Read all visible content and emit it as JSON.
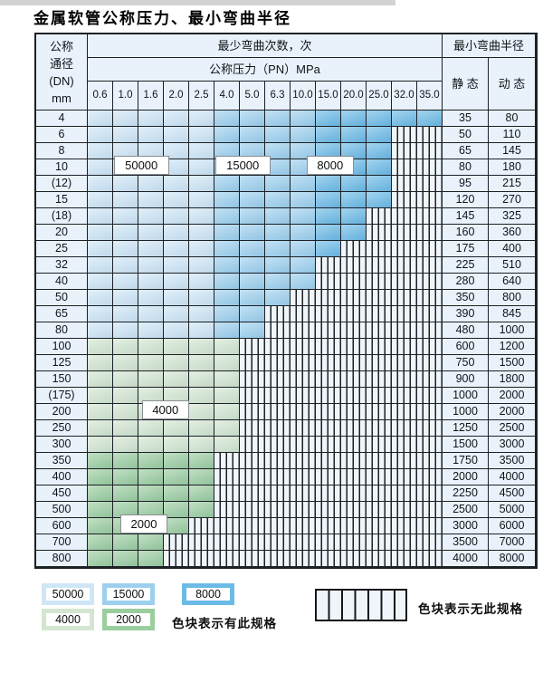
{
  "title": "金属软管公称压力、最小弯曲半径",
  "colors": {
    "line": "#1c2126",
    "header_bg": "#e9f2fa",
    "hatch_bg": "#f0f5fb",
    "blue_50000": "#cfe6f6",
    "blue_15000": "#9dd0ee",
    "blue_8000": "#6cbae6",
    "green_4000": "#d3e6d0",
    "green_2000": "#9bcd9f"
  },
  "table": {
    "header": {
      "dn_lines": [
        "公称",
        "通径",
        "(DN)",
        "mm"
      ],
      "bend_cycles": "最少弯曲次数，次",
      "pressure": "公称压力（PN）MPa",
      "min_radius": "最小弯曲半径",
      "static_label": "静 态",
      "dynamic_label": "动 态",
      "pressures": [
        "0.6",
        "1.0",
        "1.6",
        "2.0",
        "2.5",
        "4.0",
        "5.0",
        "6.3",
        "10.0",
        "15.0",
        "20.0",
        "25.0",
        "32.0",
        "35.0"
      ]
    },
    "rows": [
      {
        "dn": "4",
        "shade": "blue",
        "colored": 14,
        "max_pn": "35.0",
        "static": "35",
        "dynamic": "80"
      },
      {
        "dn": "6",
        "shade": "blue",
        "colored": 12,
        "max_pn": "25.0",
        "static": "50",
        "dynamic": "110"
      },
      {
        "dn": "8",
        "shade": "blue",
        "colored": 12,
        "max_pn": "25.0",
        "static": "65",
        "dynamic": "145"
      },
      {
        "dn": "10",
        "shade": "blue",
        "colored": 12,
        "max_pn": "25.0",
        "static": "80",
        "dynamic": "180"
      },
      {
        "dn": "(12)",
        "shade": "blue",
        "colored": 12,
        "max_pn": "25.0",
        "static": "95",
        "dynamic": "215"
      },
      {
        "dn": "15",
        "shade": "blue",
        "colored": 12,
        "max_pn": "25.0",
        "static": "120",
        "dynamic": "270"
      },
      {
        "dn": "(18)",
        "shade": "blue",
        "colored": 11,
        "max_pn": "20.0",
        "static": "145",
        "dynamic": "325"
      },
      {
        "dn": "20",
        "shade": "blue",
        "colored": 11,
        "max_pn": "20.0",
        "static": "160",
        "dynamic": "360"
      },
      {
        "dn": "25",
        "shade": "blue",
        "colored": 10,
        "max_pn": "15.0",
        "static": "175",
        "dynamic": "400"
      },
      {
        "dn": "32",
        "shade": "blue",
        "colored": 9,
        "max_pn": "10.0",
        "static": "225",
        "dynamic": "510"
      },
      {
        "dn": "40",
        "shade": "blue",
        "colored": 9,
        "max_pn": "10.0",
        "static": "280",
        "dynamic": "640"
      },
      {
        "dn": "50",
        "shade": "blue",
        "colored": 8,
        "max_pn": "6.3",
        "static": "350",
        "dynamic": "800"
      },
      {
        "dn": "65",
        "shade": "blue",
        "colored": 7,
        "max_pn": "5.0",
        "static": "390",
        "dynamic": "845"
      },
      {
        "dn": "80",
        "shade": "blue",
        "colored": 7,
        "max_pn": "5.0",
        "static": "480",
        "dynamic": "1000"
      },
      {
        "dn": "100",
        "shade": "g1",
        "colored": 6,
        "max_pn": "4.0",
        "static": "600",
        "dynamic": "1200"
      },
      {
        "dn": "125",
        "shade": "g1",
        "colored": 6,
        "max_pn": "4.0",
        "static": "750",
        "dynamic": "1500"
      },
      {
        "dn": "150",
        "shade": "g1",
        "colored": 6,
        "max_pn": "4.0",
        "static": "900",
        "dynamic": "1800"
      },
      {
        "dn": "(175)",
        "shade": "g1",
        "colored": 6,
        "max_pn": "4.0",
        "static": "1000",
        "dynamic": "2000"
      },
      {
        "dn": "200",
        "shade": "g1",
        "colored": 6,
        "max_pn": "4.0",
        "static": "1000",
        "dynamic": "2000"
      },
      {
        "dn": "250",
        "shade": "g1",
        "colored": 6,
        "max_pn": "4.0",
        "static": "1250",
        "dynamic": "2500"
      },
      {
        "dn": "300",
        "shade": "g1",
        "colored": 6,
        "max_pn": "4.0",
        "static": "1500",
        "dynamic": "3000"
      },
      {
        "dn": "350",
        "shade": "g2",
        "colored": 5,
        "max_pn": "2.5",
        "static": "1750",
        "dynamic": "3500"
      },
      {
        "dn": "400",
        "shade": "g2",
        "colored": 5,
        "max_pn": "2.5",
        "static": "2000",
        "dynamic": "4000"
      },
      {
        "dn": "450",
        "shade": "g2",
        "colored": 5,
        "max_pn": "2.5",
        "static": "2250",
        "dynamic": "4500"
      },
      {
        "dn": "500",
        "shade": "g2",
        "colored": 5,
        "max_pn": "2.5",
        "static": "2500",
        "dynamic": "5000"
      },
      {
        "dn": "600",
        "shade": "g2",
        "colored": 4,
        "max_pn": "2.0",
        "static": "3000",
        "dynamic": "6000"
      },
      {
        "dn": "700",
        "shade": "g2",
        "colored": 3,
        "max_pn": "1.6",
        "static": "3500",
        "dynamic": "7000"
      },
      {
        "dn": "800",
        "shade": "g2",
        "colored": 3,
        "max_pn": "1.6",
        "static": "4000",
        "dynamic": "8000"
      }
    ],
    "annotations": [
      {
        "text": "50000",
        "row": 3,
        "col": 1.65
      },
      {
        "text": "15000",
        "row": 3,
        "col": 5.65
      },
      {
        "text": "8000",
        "row": 3,
        "col": 9.1
      },
      {
        "text": "4000",
        "row": 18,
        "col": 2.6
      },
      {
        "text": "2000",
        "row": 25,
        "col": 1.75
      }
    ]
  },
  "legend": {
    "cycles_50000": "50000",
    "cycles_15000": "15000",
    "cycles_8000": "8000",
    "cycles_4000": "4000",
    "cycles_2000": "2000",
    "has_spec": "色块表示有此规格",
    "no_spec": "色块表示无此规格"
  }
}
